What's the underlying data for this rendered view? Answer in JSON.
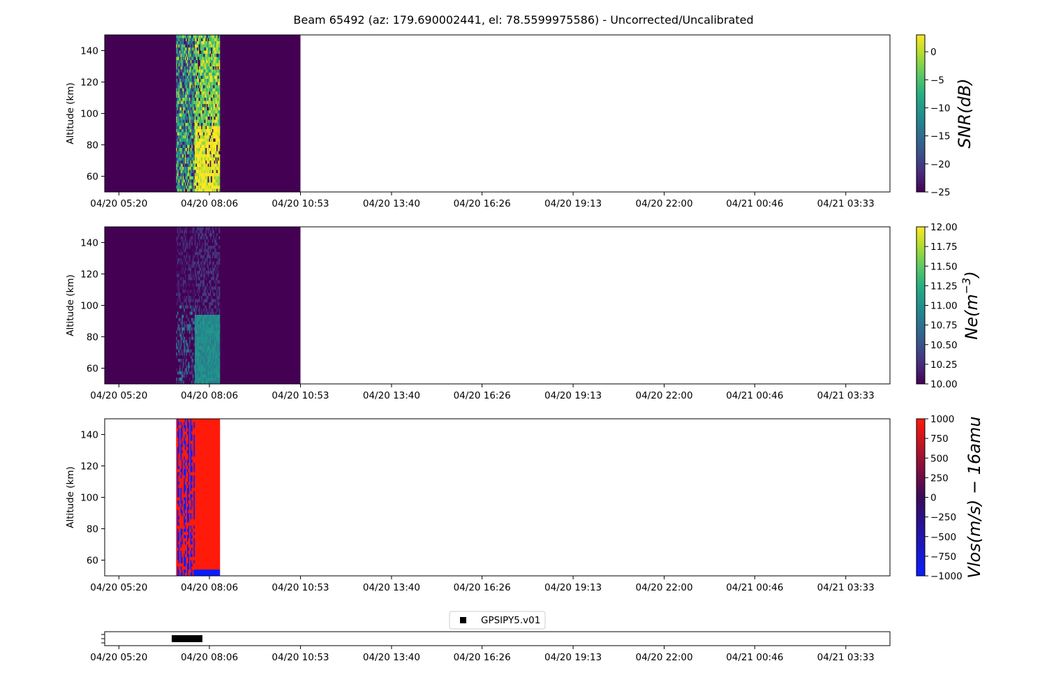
{
  "chart_data": {
    "title": "Beam 65492 (az: 179.690002441, el: 78.5599975586) - Uncorrected/Uncalibrated",
    "time_ticks": [
      "04/20 05:20",
      "04/20 08:06",
      "04/20 10:53",
      "04/20 13:40",
      "04/20 16:26",
      "04/20 19:13",
      "04/20 22:00",
      "04/21 00:46",
      "04/21 03:33"
    ],
    "panels": [
      {
        "type": "heatmap",
        "colormap": "viridis",
        "ylabel": "Altitude (km)",
        "ylim": [
          50,
          150
        ],
        "yticks": [
          "60",
          "80",
          "100",
          "120",
          "140"
        ],
        "colorbar_label": "SNR(dB)",
        "colorbar_range": [
          -25,
          3
        ],
        "colorbar_ticks": [
          "0",
          "−5",
          "−10",
          "−15",
          "−20",
          "−25"
        ],
        "data_time_span": [
          "04/20 04:54",
          "04/20 10:53"
        ],
        "background_value": -25,
        "active_span": [
          "04/20 07:05",
          "04/20 08:25"
        ],
        "active_values": {
          "scattered_min": -25,
          "scattered_max": 3,
          "bright_band_mean": -2
        }
      },
      {
        "type": "heatmap",
        "colormap": "viridis",
        "ylabel": "Altitude (km)",
        "ylim": [
          50,
          150
        ],
        "yticks": [
          "60",
          "80",
          "100",
          "120",
          "140"
        ],
        "colorbar_label": "Ne(m",
        "colorbar_label_exp": "−3",
        "colorbar_label_close": ")",
        "colorbar_range": [
          10.0,
          12.0
        ],
        "colorbar_ticks": [
          "12.00",
          "11.75",
          "11.50",
          "11.25",
          "11.00",
          "10.75",
          "10.50",
          "10.25",
          "10.00"
        ],
        "data_time_span": [
          "04/20 04:54",
          "04/20 10:53"
        ],
        "background_value": 10.0,
        "active_span": [
          "04/20 07:05",
          "04/20 08:25"
        ],
        "active_values": {
          "upper_mean": 10.95,
          "lower_mean": 10.3
        }
      },
      {
        "type": "heatmap",
        "colormap": "blue-red",
        "ylabel": "Altitude (km)",
        "ylim": [
          50,
          150
        ],
        "yticks": [
          "60",
          "80",
          "100",
          "120",
          "140"
        ],
        "colorbar_label": "Vlos(m/s) − 16amu",
        "colorbar_range": [
          -1000,
          1000
        ],
        "colorbar_ticks": [
          "1000",
          "750",
          "500",
          "250",
          "0",
          "−250",
          "−500",
          "−750",
          "−1000"
        ],
        "active_span": [
          "04/20 07:05",
          "04/20 08:25"
        ],
        "active_values": {
          "mixed": [
            -1000,
            1000
          ],
          "main_block": 1000,
          "top_strip": -1000
        }
      },
      {
        "type": "scatter",
        "legend": "GPSIPY5.v01",
        "marker_color": "#000000",
        "span": [
          "04/20 07:02",
          "04/20 07:50"
        ]
      }
    ]
  }
}
